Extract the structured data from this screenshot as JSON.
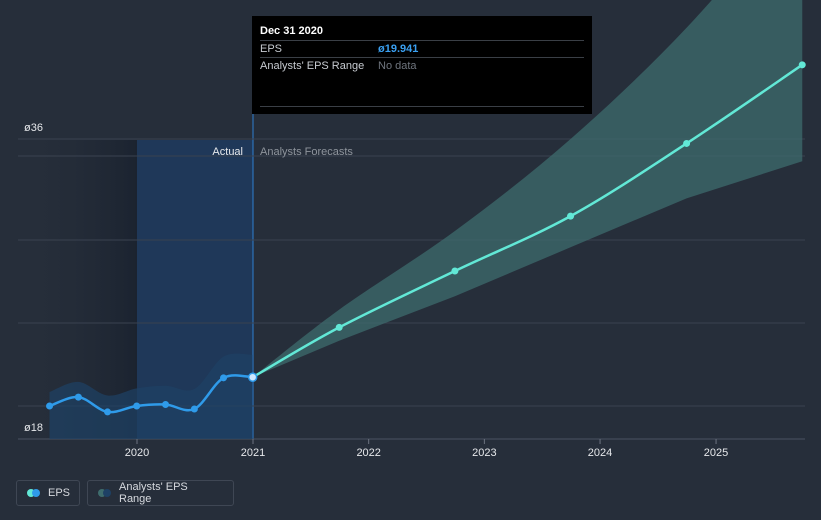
{
  "tooltip": {
    "date": "Dec 31 2020",
    "eps_label": "EPS",
    "eps_value": "ø19.941",
    "range_label": "Analysts' EPS Range",
    "range_value": "No data"
  },
  "region_labels": {
    "actual": "Actual",
    "forecast": "Analysts Forecasts"
  },
  "legend": {
    "eps": "EPS",
    "range": "Analysts' EPS Range"
  },
  "colors": {
    "background": "#262e3a",
    "actual_line": "#2f9bea",
    "forecast_line": "#62e8d6",
    "range_band": "#3e6c6d",
    "actual_band": "#1e4165",
    "tooltip_value": "#3a9ff0",
    "muted_text": "#6f757e"
  },
  "chart_data": {
    "type": "line",
    "ylabel_ticks": [
      "ø36",
      "ø18"
    ],
    "ylim": [
      18,
      36
    ],
    "x_ticks": [
      "2020",
      "2021",
      "2022",
      "2023",
      "2024",
      "2025"
    ],
    "series": [
      {
        "name": "EPS",
        "kind": "actual",
        "points": [
          [
            "2019-03-31",
            18.0
          ],
          [
            "2019-06-30",
            18.6
          ],
          [
            "2019-09-30",
            17.6
          ],
          [
            "2019-12-31",
            18.0
          ],
          [
            "2020-03-31",
            18.1
          ],
          [
            "2020-06-30",
            17.8
          ],
          [
            "2020-09-30",
            19.9
          ],
          [
            "2020-12-31",
            19.941
          ]
        ]
      },
      {
        "name": "EPS",
        "kind": "forecast",
        "points": [
          [
            "2020-12-31",
            19.941
          ],
          [
            "2021-09-30",
            23.3
          ],
          [
            "2022-09-30",
            27.1
          ],
          [
            "2023-09-30",
            30.8
          ],
          [
            "2024-09-30",
            35.7
          ],
          [
            "2025-09-30",
            41.0
          ]
        ]
      },
      {
        "name": "Analysts' EPS Range",
        "kind": "band",
        "upper": [
          [
            "2020-12-31",
            19.941
          ],
          [
            "2021-09-30",
            24.5
          ],
          [
            "2022-09-30",
            29.8
          ],
          [
            "2023-09-30",
            36.0
          ],
          [
            "2024-09-30",
            43.5
          ],
          [
            "2025-09-30",
            52.5
          ]
        ],
        "lower": [
          [
            "2020-12-31",
            19.941
          ],
          [
            "2021-09-30",
            22.4
          ],
          [
            "2022-09-30",
            25.4
          ],
          [
            "2023-09-30",
            28.7
          ],
          [
            "2024-09-30",
            32.0
          ],
          [
            "2025-09-30",
            34.5
          ]
        ]
      }
    ]
  }
}
